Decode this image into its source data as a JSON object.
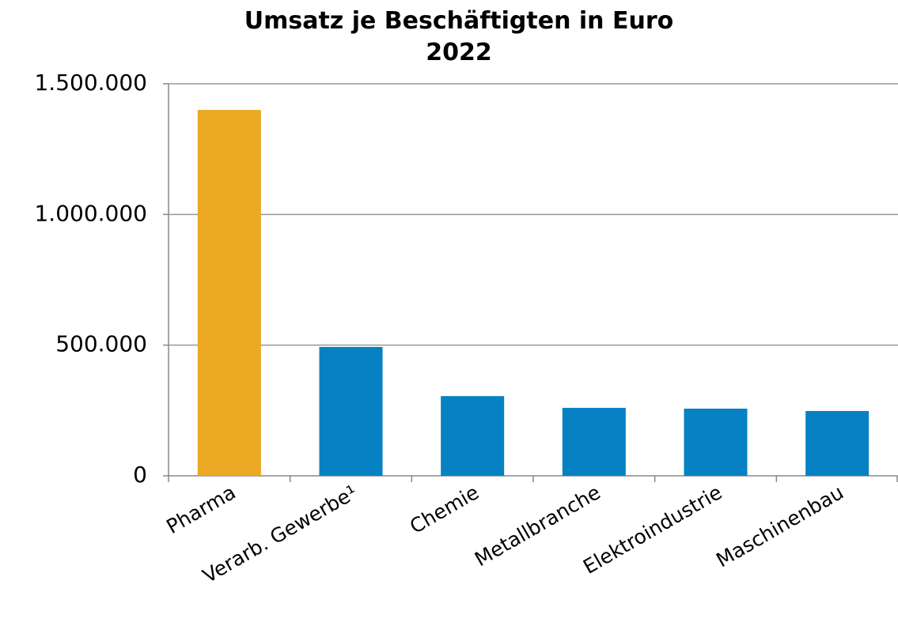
{
  "chart_data": {
    "type": "bar",
    "title": "Umsatz je Beschäftigten in Euro",
    "subtitle": "2022",
    "categories": [
      "Pharma",
      "Verarb. Gewerbe¹",
      "Chemie",
      "Metallbranche",
      "Elektroindustrie",
      "Maschinenbau"
    ],
    "values": [
      1400000,
      493000,
      305000,
      260000,
      257000,
      248000
    ],
    "colors": [
      "#eba823",
      "#0681c4",
      "#0681c4",
      "#0681c4",
      "#0681c4",
      "#0681c4"
    ],
    "ylim": [
      0,
      1500000
    ],
    "yticks": [
      0,
      {
        "value": 500000,
        "label": "500.000"
      },
      {
        "value": 1000000,
        "label": "1.000.000"
      },
      {
        "value": 1500000,
        "label": "1.500.000"
      }
    ],
    "grid": true
  }
}
